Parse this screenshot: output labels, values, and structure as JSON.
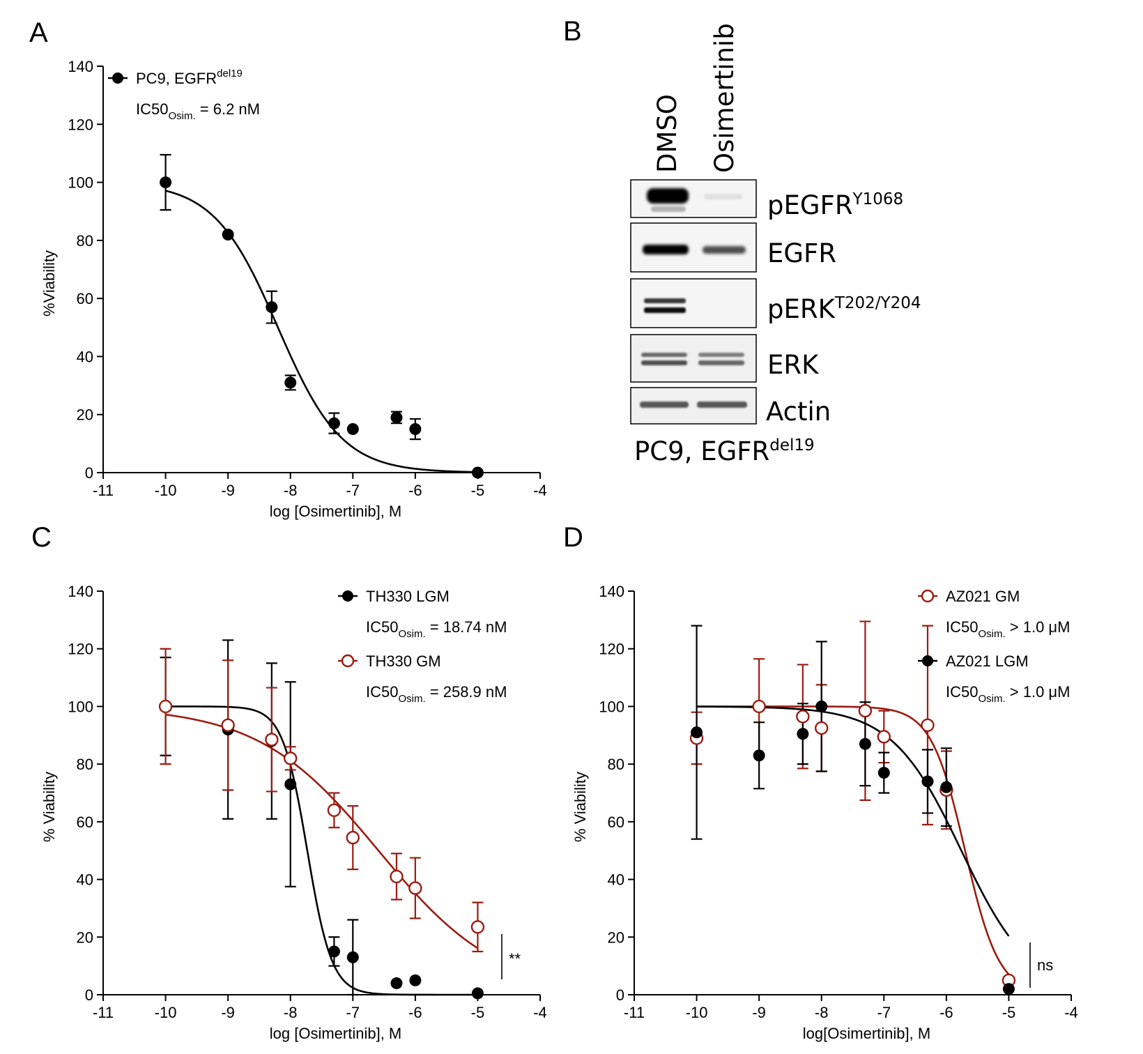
{
  "panels": {
    "A": {
      "label": "A"
    },
    "B": {
      "label": "B"
    },
    "C": {
      "label": "C"
    },
    "D": {
      "label": "D"
    }
  },
  "chart_data": [
    {
      "panel": "A",
      "type": "scatter",
      "xlabel": "log [Osimertinib], M",
      "ylabel": "%Viability",
      "xlim": [
        -11,
        -4
      ],
      "ylim": [
        0,
        140
      ],
      "x_ticks": [
        -11,
        -10,
        -9,
        -8,
        -7,
        -6,
        -5,
        -4
      ],
      "y_ticks": [
        0,
        20,
        40,
        60,
        80,
        100,
        120,
        140
      ],
      "legend_position": "top-left",
      "series": [
        {
          "name": "PC9, EGFR",
          "name_superscript": "del19",
          "ic50_prefix": "IC50",
          "ic50_subscript": "Osim.",
          "ic50_value": "= 6.2 nM",
          "marker": "filled-circle",
          "color": "#000000",
          "x": [
            -10,
            -9,
            -8.3,
            -8,
            -7.3,
            -7,
            -6.3,
            -6,
            -5
          ],
          "y": [
            100,
            82,
            57,
            31,
            17,
            15,
            19,
            15,
            0
          ],
          "err": [
            9.5,
            0,
            5.5,
            2.5,
            3.5,
            0,
            2,
            3.5,
            0
          ],
          "fit": {
            "top": 100,
            "bottom": 0,
            "logIC50": -8.2,
            "hill": -0.85
          }
        }
      ]
    },
    {
      "panel": "C",
      "type": "scatter",
      "xlabel": "log [Osimertinib], M",
      "ylabel": "% Viability",
      "xlim": [
        -11,
        -4
      ],
      "ylim": [
        0,
        140
      ],
      "x_ticks": [
        -11,
        -10,
        -9,
        -8,
        -7,
        -6,
        -5,
        -4
      ],
      "y_ticks": [
        0,
        20,
        40,
        60,
        80,
        100,
        120,
        140
      ],
      "legend_position": "top-right",
      "significance": "**",
      "series": [
        {
          "name": "TH330 LGM",
          "ic50_prefix": "IC50",
          "ic50_subscript": "Osim.",
          "ic50_value": "= 18.74 nM",
          "marker": "filled-circle",
          "color": "#000000",
          "x": [
            -10,
            -9,
            -8.3,
            -8,
            -7.3,
            -7,
            -6.3,
            -6,
            -5
          ],
          "y": [
            100,
            92,
            88,
            73,
            15,
            13,
            4,
            5,
            0.5
          ],
          "err": [
            17,
            31,
            27,
            35.5,
            5,
            13,
            0,
            0,
            0
          ],
          "fit": {
            "top": 100,
            "bottom": 0,
            "logIC50": -7.73,
            "hill": -2.2
          }
        },
        {
          "name": "TH330 GM",
          "ic50_prefix": "IC50",
          "ic50_subscript": "Osim.",
          "ic50_value": "= 258.9 nM",
          "marker": "open-circle",
          "color": "#9b1c10",
          "x": [
            -10,
            -9,
            -8.3,
            -8,
            -7.3,
            -7,
            -6.3,
            -6,
            -5
          ],
          "y": [
            100,
            93.5,
            88.5,
            82,
            64,
            54.5,
            41,
            37,
            23.5
          ],
          "err": [
            20,
            22.5,
            18,
            4,
            6,
            11,
            8,
            10.5,
            8.5
          ],
          "fit": {
            "top": 100,
            "bottom": 0,
            "logIC50": -6.59,
            "hill": -0.45
          }
        }
      ]
    },
    {
      "panel": "D",
      "type": "scatter",
      "xlabel": "log[Osimertinib], M",
      "ylabel": "% Viability",
      "xlim": [
        -11,
        -4
      ],
      "ylim": [
        0,
        140
      ],
      "x_ticks": [
        -11,
        -10,
        -9,
        -8,
        -7,
        -6,
        -5,
        -4
      ],
      "y_ticks": [
        0,
        20,
        40,
        60,
        80,
        100,
        120,
        140
      ],
      "legend_position": "top-right",
      "significance": "ns",
      "series": [
        {
          "name": "AZ021 GM",
          "ic50_prefix": "IC50",
          "ic50_subscript": "Osim.",
          "ic50_value": "> 1.0 μM",
          "marker": "open-circle",
          "color": "#9b1c10",
          "x": [
            -10,
            -9,
            -8.3,
            -8,
            -7.3,
            -7,
            -6.3,
            -6,
            -5
          ],
          "y": [
            89,
            100,
            96.5,
            92.5,
            98.5,
            89.5,
            93.5,
            71,
            5
          ],
          "err": [
            9,
            16.5,
            18,
            15,
            31,
            9,
            34.5,
            13.5,
            0
          ],
          "fit": {
            "top": 100,
            "bottom": 0,
            "logIC50": -5.7,
            "hill": -1.6
          }
        },
        {
          "name": "AZ021 LGM",
          "ic50_prefix": "IC50",
          "ic50_subscript": "Osim.",
          "ic50_value": "> 1.0 μM",
          "marker": "filled-circle",
          "color": "#000000",
          "x": [
            -10,
            -9,
            -8.3,
            -8,
            -7.3,
            -7,
            -6.3,
            -6,
            -5
          ],
          "y": [
            91,
            83,
            90.5,
            100,
            87,
            77,
            74,
            72,
            2
          ],
          "err": [
            37,
            11.5,
            10.5,
            22.5,
            14.5,
            7,
            11,
            13.5,
            0
          ],
          "fit": {
            "top": 100,
            "bottom": 0,
            "logIC50": -5.76,
            "hill": -0.78
          }
        }
      ]
    }
  ],
  "western_blot": {
    "lanes": [
      "DMSO",
      "Osimertinib"
    ],
    "cell_line": "PC9, EGFR",
    "cell_line_superscript": "del19",
    "bands": [
      {
        "base": "pEGFR",
        "superscript": "Y1068",
        "intensity_dmso": 1.0,
        "intensity_osim": 0.05
      },
      {
        "base": "EGFR",
        "superscript": "",
        "intensity_dmso": 0.9,
        "intensity_osim": 0.6
      },
      {
        "base": "pERK",
        "superscript": "T202/Y204",
        "intensity_dmso": 0.8,
        "intensity_osim": 0.0
      },
      {
        "base": "ERK",
        "superscript": "",
        "intensity_dmso": 0.65,
        "intensity_osim": 0.6
      },
      {
        "base": "Actin",
        "superscript": "",
        "intensity_dmso": 0.7,
        "intensity_osim": 0.7
      }
    ]
  }
}
